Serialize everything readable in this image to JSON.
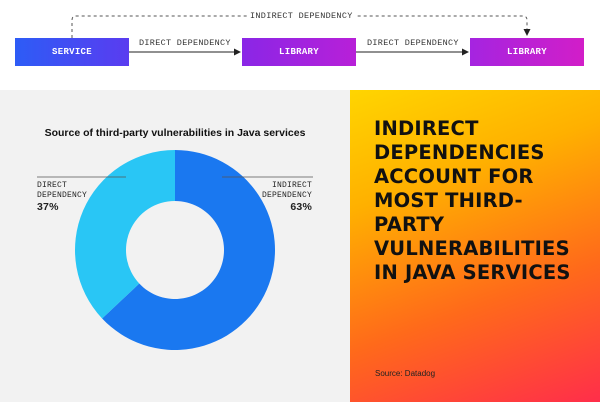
{
  "diagram": {
    "nodes": [
      {
        "label": "SERVICE"
      },
      {
        "label": "LIBRARY"
      },
      {
        "label": "LIBRARY"
      }
    ],
    "direct_label_1": "DIRECT DEPENDENCY",
    "direct_label_2": "DIRECT DEPENDENCY",
    "indirect_label": "INDIRECT DEPENDENCY"
  },
  "chart_data": {
    "type": "pie",
    "title": "Source of third-party vulnerabilities in Java services",
    "donut": true,
    "slices": [
      {
        "label": "DIRECT DEPENDENCY",
        "value": 37,
        "display": "37%",
        "color": "#29c6f5"
      },
      {
        "label": "INDIRECT DEPENDENCY",
        "value": 63,
        "display": "63%",
        "color": "#1a78f0"
      }
    ]
  },
  "headline": "INDIRECT DEPENDENCIES ACCOUNT FOR MOST THIRD-PARTY VULNERABILITIES IN JAVA SERVICES",
  "source": "Source: Datadog",
  "colors": {
    "direct": "#29c6f5",
    "indirect": "#1a78f0",
    "panel_bg": "#f2f2f2"
  }
}
